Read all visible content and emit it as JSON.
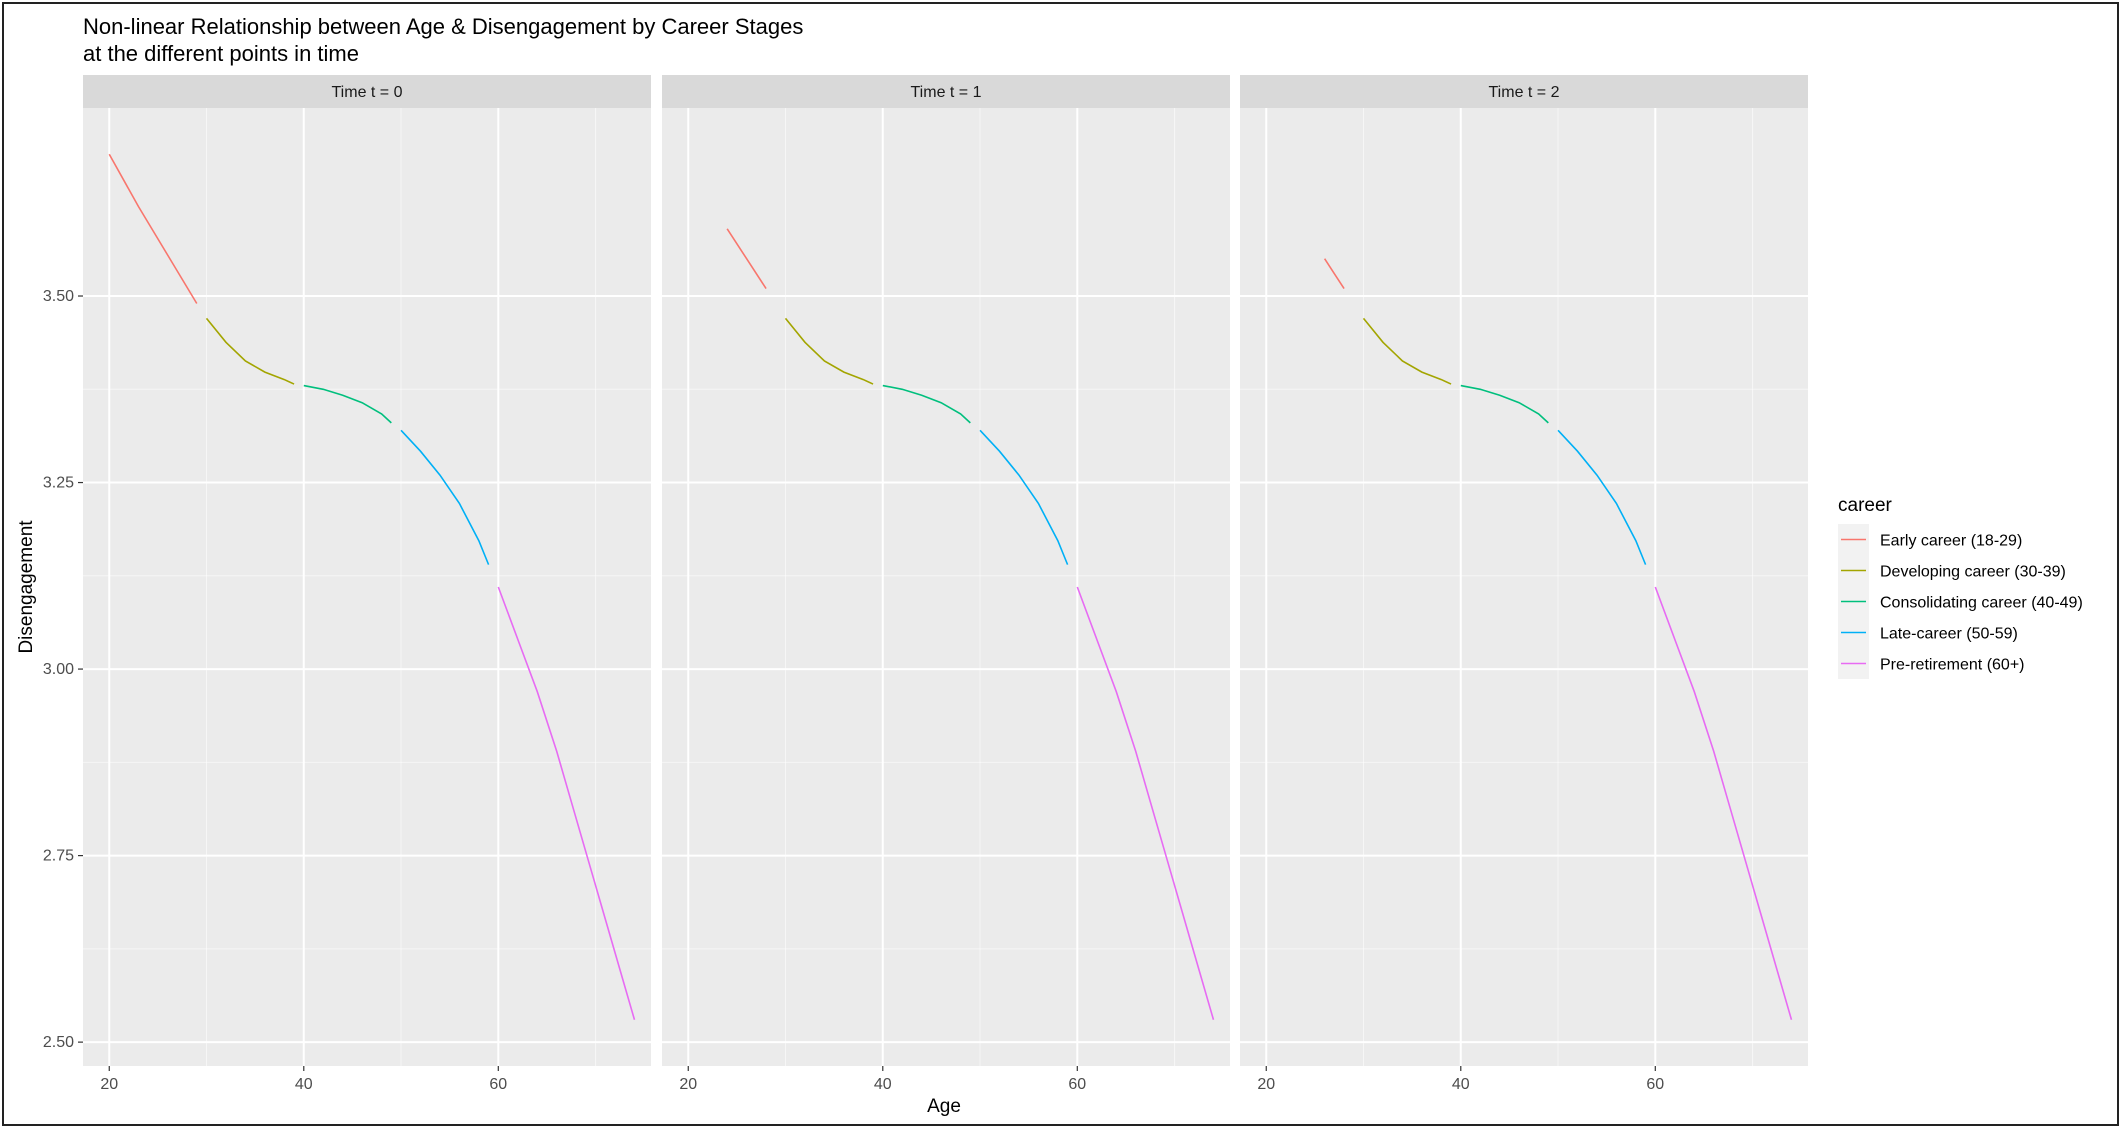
{
  "chart_data": {
    "type": "line",
    "title": "Non-linear Relationship between Age & Disengagement by Career Stages",
    "subtitle": "at the different points in time",
    "xlabel": "Age",
    "ylabel": "Disengagement",
    "xlim": [
      17.3,
      75.7
    ],
    "ylim": [
      2.468,
      3.752
    ],
    "x_ticks": [
      20,
      40,
      60
    ],
    "x_tick_labels": [
      "20",
      "40",
      "60"
    ],
    "y_ticks": [
      2.5,
      2.75,
      3.0,
      3.25,
      3.5
    ],
    "y_tick_labels": [
      "2.50",
      "2.75",
      "3.00",
      "3.25",
      "3.50"
    ],
    "grid": true,
    "legend": {
      "title": "career",
      "position": "right",
      "items": [
        {
          "label": "Early career (18-29)",
          "color": "#F8766D"
        },
        {
          "label": "Developing career (30-39)",
          "color": "#A3A500"
        },
        {
          "label": "Consolidating career (40-49)",
          "color": "#00BF7D"
        },
        {
          "label": "Late-career (50-59)",
          "color": "#00B0F6"
        },
        {
          "label": "Pre-retirement (60+)",
          "color": "#E76BF3"
        }
      ]
    },
    "panels": [
      {
        "label": "Time t = 0",
        "series": [
          {
            "stage": 0,
            "points": [
              [
                20,
                3.69
              ],
              [
                23,
                3.62
              ],
              [
                26,
                3.555
              ],
              [
                29,
                3.49
              ]
            ]
          },
          {
            "stage": 1,
            "points": [
              [
                30,
                3.47
              ],
              [
                32,
                3.438
              ],
              [
                34,
                3.413
              ],
              [
                36,
                3.398
              ],
              [
                38,
                3.388
              ],
              [
                39,
                3.382
              ]
            ]
          },
          {
            "stage": 2,
            "points": [
              [
                40,
                3.38
              ],
              [
                42,
                3.375
              ],
              [
                44,
                3.367
              ],
              [
                46,
                3.357
              ],
              [
                48,
                3.342
              ],
              [
                49,
                3.33
              ]
            ]
          },
          {
            "stage": 3,
            "points": [
              [
                50,
                3.32
              ],
              [
                52,
                3.292
              ],
              [
                54,
                3.26
              ],
              [
                56,
                3.222
              ],
              [
                58,
                3.172
              ],
              [
                59,
                3.14
              ]
            ]
          },
          {
            "stage": 4,
            "points": [
              [
                60,
                3.11
              ],
              [
                62,
                3.04
              ],
              [
                64,
                2.97
              ],
              [
                66,
                2.89
              ],
              [
                68,
                2.8
              ],
              [
                70,
                2.71
              ],
              [
                72,
                2.62
              ],
              [
                74,
                2.53
              ]
            ]
          }
        ]
      },
      {
        "label": "Time t = 1",
        "series": [
          {
            "stage": 0,
            "points": [
              [
                24,
                3.59
              ],
              [
                26,
                3.55
              ],
              [
                28,
                3.51
              ]
            ]
          },
          {
            "stage": 1,
            "points": [
              [
                30,
                3.47
              ],
              [
                32,
                3.438
              ],
              [
                34,
                3.413
              ],
              [
                36,
                3.398
              ],
              [
                38,
                3.388
              ],
              [
                39,
                3.382
              ]
            ]
          },
          {
            "stage": 2,
            "points": [
              [
                40,
                3.38
              ],
              [
                42,
                3.375
              ],
              [
                44,
                3.367
              ],
              [
                46,
                3.357
              ],
              [
                48,
                3.342
              ],
              [
                49,
                3.33
              ]
            ]
          },
          {
            "stage": 3,
            "points": [
              [
                50,
                3.32
              ],
              [
                52,
                3.292
              ],
              [
                54,
                3.26
              ],
              [
                56,
                3.222
              ],
              [
                58,
                3.172
              ],
              [
                59,
                3.14
              ]
            ]
          },
          {
            "stage": 4,
            "points": [
              [
                60,
                3.11
              ],
              [
                62,
                3.04
              ],
              [
                64,
                2.97
              ],
              [
                66,
                2.89
              ],
              [
                68,
                2.8
              ],
              [
                70,
                2.71
              ],
              [
                72,
                2.62
              ],
              [
                74,
                2.53
              ]
            ]
          }
        ]
      },
      {
        "label": "Time t = 2",
        "series": [
          {
            "stage": 0,
            "points": [
              [
                26,
                3.55
              ],
              [
                27,
                3.53
              ],
              [
                28,
                3.51
              ]
            ]
          },
          {
            "stage": 1,
            "points": [
              [
                30,
                3.47
              ],
              [
                32,
                3.438
              ],
              [
                34,
                3.413
              ],
              [
                36,
                3.398
              ],
              [
                38,
                3.388
              ],
              [
                39,
                3.382
              ]
            ]
          },
          {
            "stage": 2,
            "points": [
              [
                40,
                3.38
              ],
              [
                42,
                3.375
              ],
              [
                44,
                3.367
              ],
              [
                46,
                3.357
              ],
              [
                48,
                3.342
              ],
              [
                49,
                3.33
              ]
            ]
          },
          {
            "stage": 3,
            "points": [
              [
                50,
                3.32
              ],
              [
                52,
                3.292
              ],
              [
                54,
                3.26
              ],
              [
                56,
                3.222
              ],
              [
                58,
                3.172
              ],
              [
                59,
                3.14
              ]
            ]
          },
          {
            "stage": 4,
            "points": [
              [
                60,
                3.11
              ],
              [
                62,
                3.04
              ],
              [
                64,
                2.97
              ],
              [
                66,
                2.89
              ],
              [
                68,
                2.8
              ],
              [
                70,
                2.71
              ],
              [
                72,
                2.62
              ],
              [
                74,
                2.53
              ]
            ]
          }
        ]
      }
    ],
    "colors": {
      "panel_background": "#EBEBEB",
      "strip_background": "#D9D9D9",
      "grid_major": "#FFFFFF",
      "legend_key_background": "#F2F2F2"
    }
  }
}
